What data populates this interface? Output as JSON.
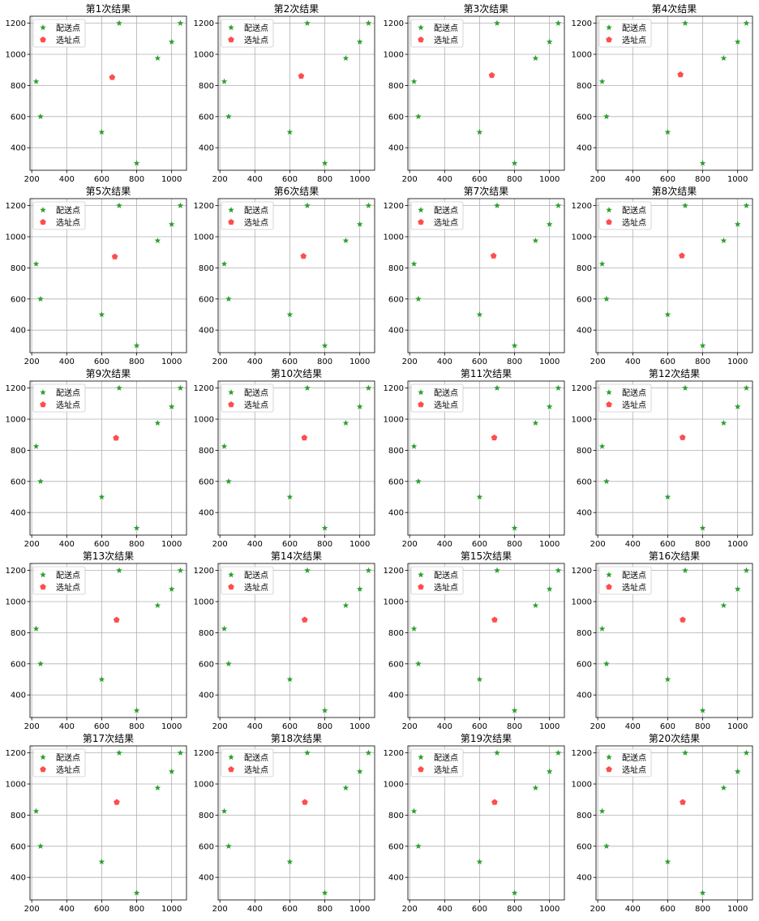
{
  "chart_data": {
    "type": "scatter",
    "layout": {
      "rows": 5,
      "cols": 4
    },
    "xlim": [
      190,
      1085
    ],
    "ylim": [
      255,
      1245
    ],
    "xticks": [
      200,
      400,
      600,
      800,
      1000
    ],
    "yticks": [
      400,
      600,
      800,
      1000,
      1200
    ],
    "grid": true,
    "legend_position": "top-left",
    "colors": {
      "delivery": "#2ca02c",
      "site": "#ff4d4d"
    },
    "delivery_points": {
      "name": "配送点",
      "x": [
        225,
        250,
        600,
        700,
        800,
        920,
        1000,
        1050
      ],
      "y": [
        825,
        600,
        500,
        1200,
        300,
        975,
        1080,
        1200
      ]
    },
    "panels": [
      {
        "title": "第1次结果",
        "site": {
          "name": "选址点",
          "x": 660,
          "y": 852
        }
      },
      {
        "title": "第2次结果",
        "site": {
          "name": "选址点",
          "x": 665,
          "y": 860
        }
      },
      {
        "title": "第3次结果",
        "site": {
          "name": "选址点",
          "x": 670,
          "y": 865
        }
      },
      {
        "title": "第4次结果",
        "site": {
          "name": "选址点",
          "x": 673,
          "y": 870
        }
      },
      {
        "title": "第5次结果",
        "site": {
          "name": "选址点",
          "x": 675,
          "y": 872
        }
      },
      {
        "title": "第6次结果",
        "site": {
          "name": "选址点",
          "x": 678,
          "y": 875
        }
      },
      {
        "title": "第7次结果",
        "site": {
          "name": "选址点",
          "x": 680,
          "y": 877
        }
      },
      {
        "title": "第8次结果",
        "site": {
          "name": "选址点",
          "x": 681,
          "y": 878
        }
      },
      {
        "title": "第9次结果",
        "site": {
          "name": "选址点",
          "x": 682,
          "y": 879
        }
      },
      {
        "title": "第10次结果",
        "site": {
          "name": "选址点",
          "x": 683,
          "y": 880
        }
      },
      {
        "title": "第11次结果",
        "site": {
          "name": "选址点",
          "x": 684,
          "y": 881
        }
      },
      {
        "title": "第12次结果",
        "site": {
          "name": "选址点",
          "x": 685,
          "y": 882
        }
      },
      {
        "title": "第13次结果",
        "site": {
          "name": "选址点",
          "x": 685,
          "y": 882
        }
      },
      {
        "title": "第14次结果",
        "site": {
          "name": "选址点",
          "x": 685,
          "y": 883
        }
      },
      {
        "title": "第15次结果",
        "site": {
          "name": "选址点",
          "x": 686,
          "y": 883
        }
      },
      {
        "title": "第16次结果",
        "site": {
          "name": "选址点",
          "x": 686,
          "y": 883
        }
      },
      {
        "title": "第17次结果",
        "site": {
          "name": "选址点",
          "x": 686,
          "y": 883
        }
      },
      {
        "title": "第18次结果",
        "site": {
          "name": "选址点",
          "x": 686,
          "y": 883
        }
      },
      {
        "title": "第19次结果",
        "site": {
          "name": "选址点",
          "x": 686,
          "y": 883
        }
      },
      {
        "title": "第20次结果",
        "site": {
          "name": "选址点",
          "x": 686,
          "y": 883
        }
      }
    ]
  }
}
